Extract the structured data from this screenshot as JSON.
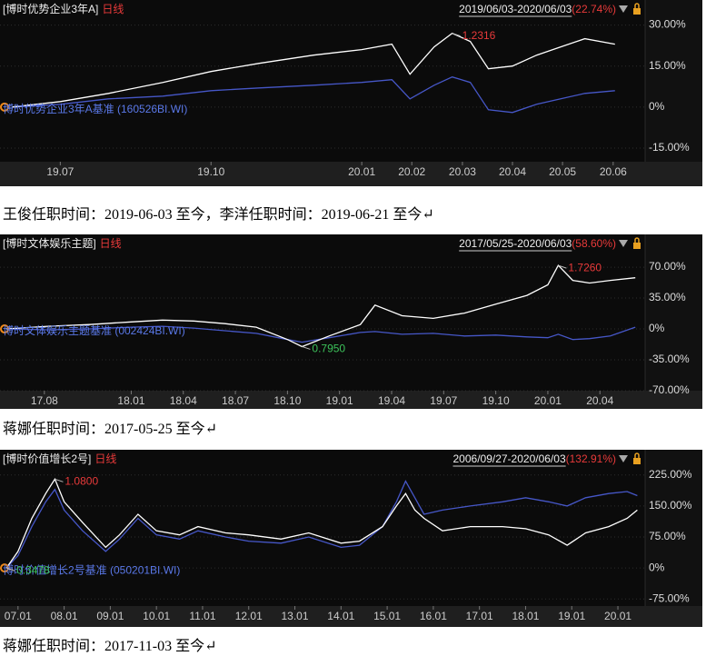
{
  "chart_data": [
    {
      "type": "line",
      "title": "[博时优势企业3年A]",
      "frequency": "日线",
      "period": "2019/06/03-2020/06/03",
      "period_return": "(22.74%)",
      "xlim": [
        2019.4,
        2020.47
      ],
      "xticks": [
        {
          "value": 2019.5,
          "label": "19.07"
        },
        {
          "value": 2019.75,
          "label": "19.10"
        },
        {
          "value": 2020.0,
          "label": "20.01"
        },
        {
          "value": 2020.083,
          "label": "20.02"
        },
        {
          "value": 2020.167,
          "label": "20.03"
        },
        {
          "value": 2020.25,
          "label": "20.04"
        },
        {
          "value": 2020.333,
          "label": "20.05"
        },
        {
          "value": 2020.417,
          "label": "20.06"
        }
      ],
      "ylim": [
        -20,
        37.5
      ],
      "yticks": [
        {
          "value": 30,
          "label": "30.00%"
        },
        {
          "value": 15,
          "label": "15.00%"
        },
        {
          "value": 0,
          "label": "0%"
        },
        {
          "value": -15,
          "label": "-15.00%"
        }
      ],
      "grid": true,
      "x": [
        2019.42,
        2019.5,
        2019.58,
        2019.67,
        2019.75,
        2019.83,
        2019.92,
        2020.0,
        2020.05,
        2020.08,
        2020.12,
        2020.15,
        2020.18,
        2020.21,
        2020.25,
        2020.29,
        2020.33,
        2020.37,
        2020.42
      ],
      "series": [
        {
          "color": "#ffffff",
          "values": [
            0,
            2,
            5,
            9,
            13,
            16,
            19,
            21,
            23,
            12,
            22,
            27,
            24,
            14,
            15,
            19,
            22,
            25,
            23
          ]
        },
        {
          "name": "博时优势企业3年A基准 (160526BI.WI)",
          "color": "#4657c8",
          "values": [
            0,
            1,
            3,
            4,
            6,
            7,
            8,
            9,
            10,
            3,
            8,
            11,
            9,
            -1,
            -2,
            1,
            3,
            5,
            6
          ]
        }
      ],
      "annotations": [
        {
          "text": "1.2316",
          "x": 2020.15,
          "y": 27,
          "color": "#e83a3a"
        }
      ]
    },
    {
      "type": "line",
      "title": "[博时文体娱乐主题]",
      "frequency": "日线",
      "period": "2017/05/25-2020/06/03",
      "period_return": "(58.60%)",
      "xlim": [
        2017.37,
        2020.467
      ],
      "xticks": [
        {
          "value": 2017.583,
          "label": "17.08"
        },
        {
          "value": 2018.0,
          "label": "18.01"
        },
        {
          "value": 2018.25,
          "label": "18.04"
        },
        {
          "value": 2018.5,
          "label": "18.07"
        },
        {
          "value": 2018.75,
          "label": "18.10"
        },
        {
          "value": 2019.0,
          "label": "19.01"
        },
        {
          "value": 2019.25,
          "label": "19.04"
        },
        {
          "value": 2019.5,
          "label": "19.07"
        },
        {
          "value": 2019.75,
          "label": "19.10"
        },
        {
          "value": 2020.0,
          "label": "20.01"
        },
        {
          "value": 2020.25,
          "label": "20.04"
        }
      ],
      "ylim": [
        -70,
        102
      ],
      "yticks": [
        {
          "value": 70,
          "label": "70.00%"
        },
        {
          "value": 35,
          "label": "35.00%"
        },
        {
          "value": 0,
          "label": "0%"
        },
        {
          "value": -35,
          "label": "-35.00%"
        },
        {
          "value": -70,
          "label": "-70.00%"
        }
      ],
      "grid": true,
      "x": [
        2017.4,
        2017.6,
        2017.8,
        2018.0,
        2018.15,
        2018.3,
        2018.45,
        2018.6,
        2018.75,
        2018.82,
        2018.95,
        2019.1,
        2019.17,
        2019.3,
        2019.45,
        2019.6,
        2019.75,
        2019.9,
        2020.0,
        2020.05,
        2020.12,
        2020.2,
        2020.3,
        2020.42
      ],
      "series": [
        {
          "color": "#ffffff",
          "values": [
            0,
            3,
            5,
            8,
            10,
            9,
            6,
            2,
            -12,
            -20,
            -8,
            5,
            27,
            15,
            12,
            18,
            28,
            38,
            50,
            72,
            55,
            52,
            55,
            58
          ]
        },
        {
          "name": "博时文体娱乐主题基准 (002424BI.WI)",
          "color": "#4657c8",
          "values": [
            0,
            -1,
            0,
            2,
            3,
            1,
            -2,
            -5,
            -12,
            -15,
            -10,
            -4,
            -3,
            -6,
            -5,
            -8,
            -7,
            -9,
            -10,
            -6,
            -12,
            -11,
            -8,
            2
          ]
        }
      ],
      "annotations": [
        {
          "text": "1.7260",
          "x": 2020.05,
          "y": 72,
          "color": "#e83a3a"
        },
        {
          "text": "0.7950",
          "x": 2018.82,
          "y": -20,
          "color": "#3cc25a"
        }
      ]
    },
    {
      "type": "line",
      "title": "[博时价值增长2号]",
      "frequency": "日线",
      "period": "2006/09/27-2020/06/03",
      "period_return": "(132.91%)",
      "xlim": [
        2006.61,
        2020.59
      ],
      "xticks": [
        {
          "value": 2007,
          "label": "07.01"
        },
        {
          "value": 2008,
          "label": "08.01"
        },
        {
          "value": 2009,
          "label": "09.01"
        },
        {
          "value": 2010,
          "label": "10.01"
        },
        {
          "value": 2011,
          "label": "11.01"
        },
        {
          "value": 2012,
          "label": "12.01"
        },
        {
          "value": 2013,
          "label": "13.01"
        },
        {
          "value": 2014,
          "label": "14.01"
        },
        {
          "value": 2015,
          "label": "15.01"
        },
        {
          "value": 2016,
          "label": "16.01"
        },
        {
          "value": 2017,
          "label": "17.01"
        },
        {
          "value": 2018,
          "label": "18.01"
        },
        {
          "value": 2019,
          "label": "19.01"
        },
        {
          "value": 2020,
          "label": "20.01"
        }
      ],
      "ylim": [
        -92,
        275
      ],
      "yticks": [
        {
          "value": 225,
          "label": "225.00%"
        },
        {
          "value": 150,
          "label": "150.00%"
        },
        {
          "value": 75,
          "label": "75.00%"
        },
        {
          "value": 0,
          "label": "0%"
        },
        {
          "value": -75,
          "label": "-75.00%"
        }
      ],
      "grid": true,
      "x": [
        2006.75,
        2007.0,
        2007.3,
        2007.6,
        2007.8,
        2008.0,
        2008.4,
        2008.9,
        2009.2,
        2009.6,
        2010.0,
        2010.5,
        2010.9,
        2011.5,
        2012.0,
        2012.7,
        2013.3,
        2014.0,
        2014.4,
        2014.9,
        2015.2,
        2015.4,
        2015.6,
        2015.8,
        2016.2,
        2016.8,
        2017.5,
        2018.0,
        2018.5,
        2018.9,
        2019.3,
        2019.8,
        2020.2,
        2020.42
      ],
      "series": [
        {
          "color": "#ffffff",
          "values": [
            0,
            40,
            120,
            180,
            215,
            160,
            110,
            50,
            80,
            130,
            90,
            80,
            100,
            85,
            80,
            70,
            85,
            60,
            65,
            100,
            150,
            180,
            140,
            120,
            90,
            100,
            100,
            95,
            80,
            55,
            85,
            100,
            120,
            140
          ]
        },
        {
          "name": "博时价值增长2号基准 (050201BI.WI)",
          "color": "#4657c8",
          "values": [
            0,
            30,
            100,
            160,
            190,
            140,
            90,
            40,
            70,
            120,
            80,
            70,
            90,
            75,
            65,
            60,
            75,
            50,
            55,
            100,
            160,
            210,
            170,
            130,
            140,
            150,
            160,
            170,
            160,
            150,
            170,
            180,
            185,
            175
          ]
        }
      ],
      "annotations": [
        {
          "text": "1.0800",
          "x": 2007.8,
          "y": 215,
          "color": "#e83a3a"
        },
        {
          "text": "0.3478",
          "x": 2006.75,
          "y": 0,
          "color": "#3cc25a"
        }
      ]
    }
  ],
  "captions": [
    "王俊任职时间：2019-06-03 至今，李洋任职时间：2019-06-21 至今↵",
    "蒋娜任职时间：2017-05-25 至今↵",
    "蒋娜任职时间：2017-11-03 至今↵"
  ]
}
